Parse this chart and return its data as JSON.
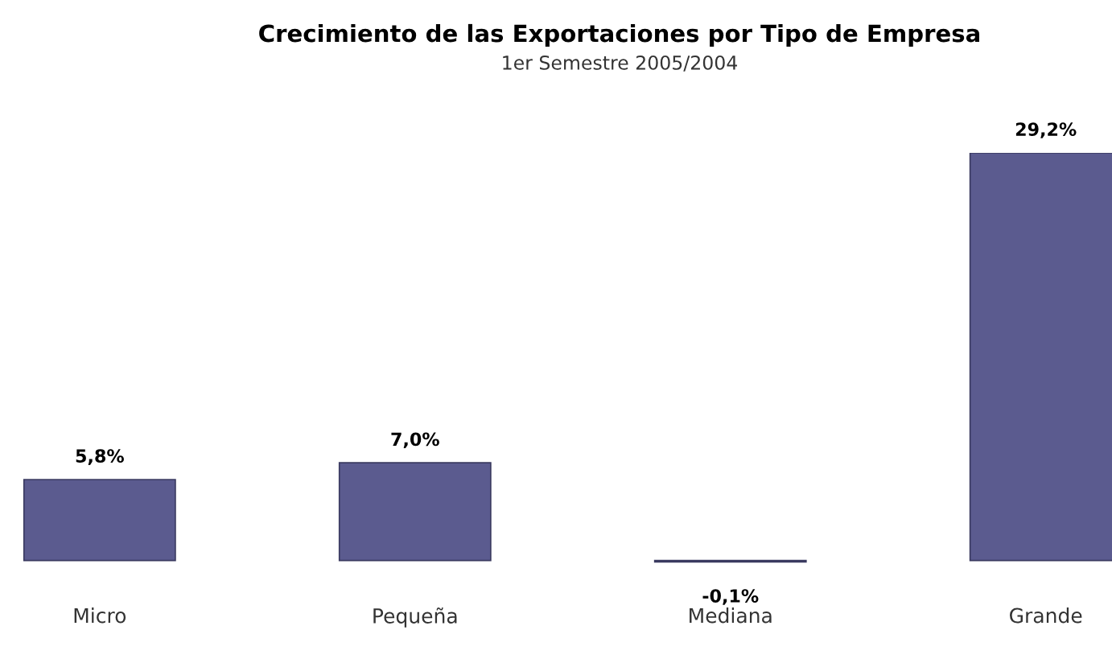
{
  "chart_data": {
    "type": "bar",
    "title": "Crecimiento de las Exportaciones por Tipo de Empresa",
    "subtitle": "1er Semestre 2005/2004",
    "categories": [
      "Micro",
      "Pequeña",
      "Mediana",
      "Grande"
    ],
    "values": [
      5.8,
      7.0,
      -0.1,
      29.2
    ],
    "value_labels": [
      "5,8%",
      "7,0%",
      "-0,1%",
      "29,2%"
    ],
    "color": "#5b5b8f",
    "grid": false,
    "legend": false
  }
}
